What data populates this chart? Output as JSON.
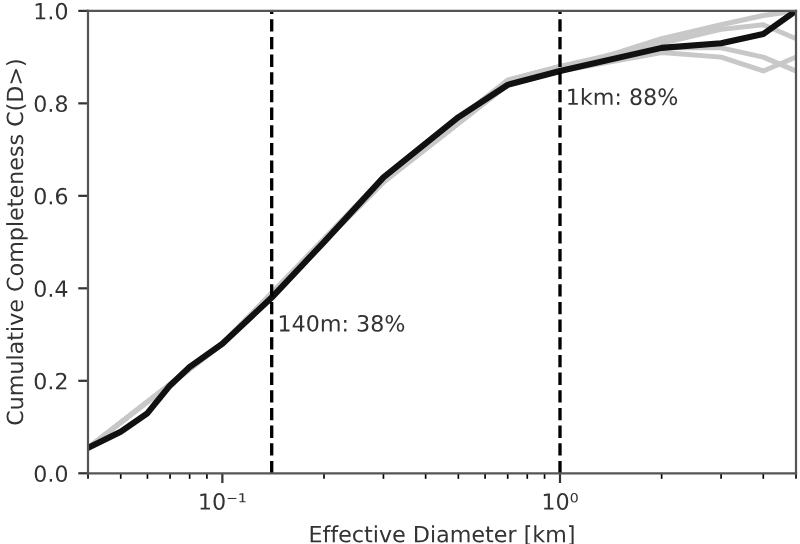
{
  "chart_data": {
    "type": "line",
    "xlabel": "Effective Diameter [km]",
    "ylabel": "Cumulative Completeness C(D>)",
    "log": "x",
    "grid": false,
    "legend": false,
    "marker": "none",
    "line_style": "solid",
    "xlim": [
      0.04,
      5
    ],
    "ylim": [
      0,
      1
    ],
    "xticks": [
      {
        "value": 0.1,
        "label": "10⁻¹"
      },
      {
        "value": 1,
        "label": "10⁰"
      }
    ],
    "yticks": [
      {
        "value": 0,
        "label": "0.0"
      },
      {
        "value": 0.2,
        "label": "0.2"
      },
      {
        "value": 0.4,
        "label": "0.4"
      },
      {
        "value": 0.6,
        "label": "0.6"
      },
      {
        "value": 0.8,
        "label": "0.8"
      },
      {
        "value": 1,
        "label": "1.0"
      }
    ],
    "series": [
      {
        "color": "#c8c8c8",
        "x": [
          0.04,
          0.1,
          0.3,
          0.7,
          1,
          2,
          3,
          4,
          5
        ],
        "values": [
          0.055,
          0.28,
          0.63,
          0.84,
          0.87,
          0.94,
          0.97,
          0.99,
          1.0
        ]
      },
      {
        "color": "#c8c8c8",
        "x": [
          0.04,
          0.1,
          0.3,
          0.7,
          1,
          2,
          3,
          4,
          5
        ],
        "values": [
          0.055,
          0.28,
          0.63,
          0.84,
          0.87,
          0.91,
          0.9,
          0.87,
          0.9
        ]
      },
      {
        "color": "#c8c8c8",
        "x": [
          0.04,
          0.1,
          0.3,
          0.7,
          1,
          2,
          3,
          4,
          5
        ],
        "values": [
          0.055,
          0.28,
          0.63,
          0.85,
          0.88,
          0.93,
          0.96,
          0.97,
          0.94
        ]
      },
      {
        "color": "#c8c8c8",
        "x": [
          0.04,
          0.1,
          0.3,
          0.7,
          1,
          2,
          3,
          4,
          5
        ],
        "values": [
          0.055,
          0.28,
          0.64,
          0.85,
          0.88,
          0.92,
          0.92,
          0.9,
          0.87
        ]
      },
      {
        "color": "#111111",
        "x": [
          0.04,
          0.05,
          0.06,
          0.07,
          0.08,
          0.1,
          0.14,
          0.2,
          0.3,
          0.5,
          0.7,
          1,
          2,
          3,
          4,
          5
        ],
        "values": [
          0.055,
          0.09,
          0.13,
          0.19,
          0.23,
          0.28,
          0.38,
          0.5,
          0.64,
          0.77,
          0.84,
          0.87,
          0.92,
          0.93,
          0.95,
          1.0
        ]
      }
    ],
    "ref_lines": [
      {
        "axis": "x",
        "value": 0.14,
        "label": "140m: 38%",
        "color": "#000000",
        "line_style": "dashed"
      },
      {
        "axis": "x",
        "value": 1,
        "label": "1km: 88%",
        "color": "#000000",
        "line_style": "dashed"
      }
    ]
  }
}
